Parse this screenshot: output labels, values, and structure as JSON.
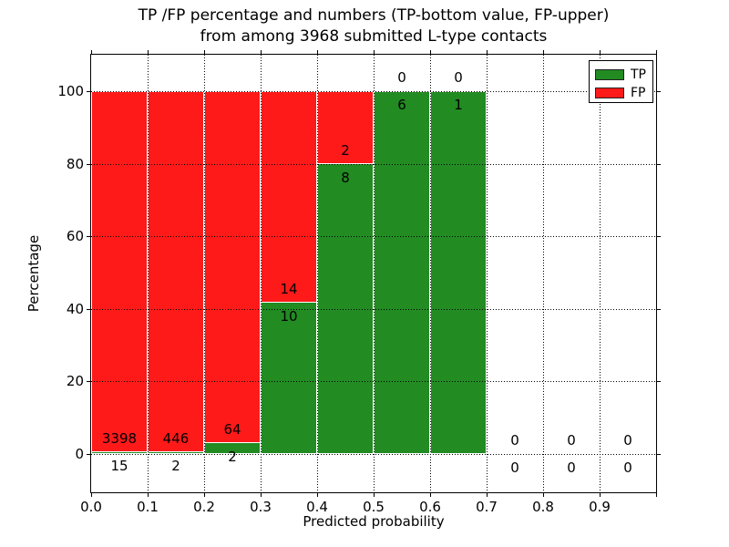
{
  "figure": {
    "title_line1": "TP /FP percentage and numbers (TP-bottom value, FP-upper)",
    "title_line2": "from among 3968 submitted L-type contacts",
    "background_color": "#ffffff"
  },
  "chart_data": {
    "type": "bar",
    "variant": "stacked-percentage-histogram",
    "title": "TP /FP percentage and numbers (TP-bottom value, FP-upper) from among 3968 submitted L-type contacts",
    "xlabel": "Predicted probability",
    "ylabel": "Percentage",
    "total_submitted": 3968,
    "bin_width": 0.1,
    "bins": [
      {
        "range": [
          0.0,
          0.1
        ],
        "tp": 15,
        "fp": 3398,
        "tp_pct": 0.44
      },
      {
        "range": [
          0.1,
          0.2
        ],
        "tp": 2,
        "fp": 446,
        "tp_pct": 0.45
      },
      {
        "range": [
          0.2,
          0.3
        ],
        "tp": 2,
        "fp": 64,
        "tp_pct": 3.03
      },
      {
        "range": [
          0.3,
          0.4
        ],
        "tp": 10,
        "fp": 14,
        "tp_pct": 41.67
      },
      {
        "range": [
          0.4,
          0.5
        ],
        "tp": 8,
        "fp": 2,
        "tp_pct": 80.0
      },
      {
        "range": [
          0.5,
          0.6
        ],
        "tp": 6,
        "fp": 0,
        "tp_pct": 100.0
      },
      {
        "range": [
          0.6,
          0.7
        ],
        "tp": 1,
        "fp": 0,
        "tp_pct": 100.0
      },
      {
        "range": [
          0.7,
          0.8
        ],
        "tp": 0,
        "fp": 0,
        "tp_pct": null
      },
      {
        "range": [
          0.8,
          0.9
        ],
        "tp": 0,
        "fp": 0,
        "tp_pct": null
      },
      {
        "range": [
          0.9,
          1.0
        ],
        "tp": 0,
        "fp": 0,
        "tp_pct": null
      }
    ],
    "x_ticks": [
      "0.0",
      "0.1",
      "0.2",
      "0.3",
      "0.4",
      "0.5",
      "0.6",
      "0.7",
      "0.8",
      "0.9"
    ],
    "y_ticks": [
      0,
      20,
      40,
      60,
      80,
      100
    ],
    "xlim": [
      0.0,
      1.0
    ],
    "ylim": [
      -10.55,
      110.05
    ],
    "grid": "dotted",
    "legend": {
      "position": "upper-right",
      "entries": [
        {
          "label": "TP",
          "color": "#228b22"
        },
        {
          "label": "FP",
          "color": "#ff1a1a"
        }
      ]
    },
    "colors": {
      "tp": "#228b22",
      "fp": "#ff1a1a",
      "bar_edge": "#ffffff",
      "axes": "#000000"
    }
  }
}
